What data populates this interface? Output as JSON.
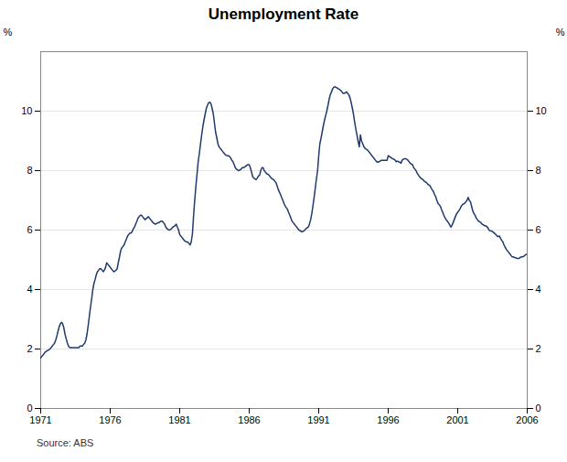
{
  "chart_data": {
    "type": "line",
    "title": "Unemployment Rate",
    "y_label": "%",
    "y2_label": "%",
    "source": "Source: ABS",
    "color": "#1f3a6e",
    "grid": true,
    "xlim": [
      1971,
      2006
    ],
    "ylim": [
      0,
      12
    ],
    "xticks": [
      1971,
      1976,
      1981,
      1986,
      1991,
      1996,
      2001,
      2006
    ],
    "yticks": [
      0,
      2,
      4,
      6,
      8,
      10
    ],
    "y2lim": [
      0,
      12
    ],
    "y2ticks": [
      0,
      2,
      4,
      6,
      8,
      10
    ],
    "x": [
      1971.0,
      1971.08,
      1971.17,
      1971.25,
      1971.33,
      1971.42,
      1971.5,
      1971.58,
      1971.67,
      1971.75,
      1971.83,
      1971.92,
      1972.0,
      1972.08,
      1972.17,
      1972.25,
      1972.33,
      1972.42,
      1972.5,
      1972.58,
      1972.67,
      1972.75,
      1972.83,
      1972.92,
      1973.0,
      1973.08,
      1973.17,
      1973.25,
      1973.33,
      1973.42,
      1973.5,
      1973.58,
      1973.67,
      1973.75,
      1973.83,
      1973.92,
      1974.0,
      1974.08,
      1974.17,
      1974.25,
      1974.33,
      1974.42,
      1974.5,
      1974.58,
      1974.67,
      1974.75,
      1974.83,
      1974.92,
      1975.0,
      1975.08,
      1975.17,
      1975.25,
      1975.33,
      1975.42,
      1975.5,
      1975.58,
      1975.67,
      1975.75,
      1975.83,
      1975.92,
      1976.0,
      1976.08,
      1976.17,
      1976.25,
      1976.33,
      1976.42,
      1976.5,
      1976.58,
      1976.67,
      1976.75,
      1976.83,
      1976.92,
      1977.0,
      1977.08,
      1977.17,
      1977.25,
      1977.33,
      1977.42,
      1977.5,
      1977.58,
      1977.67,
      1977.75,
      1977.83,
      1977.92,
      1978.0,
      1978.08,
      1978.17,
      1978.25,
      1978.33,
      1978.42,
      1978.5,
      1978.58,
      1978.67,
      1978.75,
      1978.83,
      1978.92,
      1979.0,
      1979.08,
      1979.17,
      1979.25,
      1979.33,
      1979.42,
      1979.5,
      1979.58,
      1979.67,
      1979.75,
      1979.83,
      1979.92,
      1980.0,
      1980.08,
      1980.17,
      1980.25,
      1980.33,
      1980.42,
      1980.5,
      1980.58,
      1980.67,
      1980.75,
      1980.83,
      1980.92,
      1981.0,
      1981.08,
      1981.17,
      1981.25,
      1981.33,
      1981.42,
      1981.5,
      1981.58,
      1981.67,
      1981.75,
      1981.83,
      1981.92,
      1982.0,
      1982.08,
      1982.17,
      1982.25,
      1982.33,
      1982.42,
      1982.5,
      1982.58,
      1982.67,
      1982.75,
      1982.83,
      1982.92,
      1983.0,
      1983.08,
      1983.17,
      1983.25,
      1983.33,
      1983.42,
      1983.5,
      1983.58,
      1983.67,
      1983.75,
      1983.83,
      1983.92,
      1984.0,
      1984.08,
      1984.17,
      1984.25,
      1984.33,
      1984.42,
      1984.5,
      1984.58,
      1984.67,
      1984.75,
      1984.83,
      1984.92,
      1985.0,
      1985.08,
      1985.17,
      1985.25,
      1985.33,
      1985.42,
      1985.5,
      1985.58,
      1985.67,
      1985.75,
      1985.83,
      1985.92,
      1986.0,
      1986.08,
      1986.17,
      1986.25,
      1986.33,
      1986.42,
      1986.5,
      1986.58,
      1986.67,
      1986.75,
      1986.83,
      1986.92,
      1987.0,
      1987.08,
      1987.17,
      1987.25,
      1987.33,
      1987.42,
      1987.5,
      1987.58,
      1987.67,
      1987.75,
      1987.83,
      1987.92,
      1988.0,
      1988.08,
      1988.17,
      1988.25,
      1988.33,
      1988.42,
      1988.5,
      1988.58,
      1988.67,
      1988.75,
      1988.83,
      1988.92,
      1989.0,
      1989.08,
      1989.17,
      1989.25,
      1989.33,
      1989.42,
      1989.5,
      1989.58,
      1989.67,
      1989.75,
      1989.83,
      1989.92,
      1990.0,
      1990.08,
      1990.17,
      1990.25,
      1990.33,
      1990.42,
      1990.5,
      1990.58,
      1990.67,
      1990.75,
      1990.83,
      1990.92,
      1991.0,
      1991.08,
      1991.17,
      1991.25,
      1991.33,
      1991.42,
      1991.5,
      1991.58,
      1991.67,
      1991.75,
      1991.83,
      1991.92,
      1992.0,
      1992.08,
      1992.17,
      1992.25,
      1992.33,
      1992.42,
      1992.5,
      1992.58,
      1992.67,
      1992.75,
      1992.83,
      1992.92,
      1993.0,
      1993.08,
      1993.17,
      1993.25,
      1993.33,
      1993.42,
      1993.5,
      1993.58,
      1993.67,
      1993.75,
      1993.83,
      1993.92,
      1994.0,
      1994.08,
      1994.17,
      1994.25,
      1994.33,
      1994.42,
      1994.5,
      1994.58,
      1994.67,
      1994.75,
      1994.83,
      1994.92,
      1995.0,
      1995.08,
      1995.17,
      1995.25,
      1995.33,
      1995.42,
      1995.5,
      1995.58,
      1995.67,
      1995.75,
      1995.83,
      1995.92,
      1996.0,
      1996.08,
      1996.17,
      1996.25,
      1996.33,
      1996.42,
      1996.5,
      1996.58,
      1996.67,
      1996.75,
      1996.83,
      1996.92,
      1997.0,
      1997.08,
      1997.17,
      1997.25,
      1997.33,
      1997.42,
      1997.5,
      1997.58,
      1997.67,
      1997.75,
      1997.83,
      1997.92,
      1998.0,
      1998.08,
      1998.17,
      1998.25,
      1998.33,
      1998.42,
      1998.5,
      1998.58,
      1998.67,
      1998.75,
      1998.83,
      1998.92,
      1999.0,
      1999.08,
      1999.17,
      1999.25,
      1999.33,
      1999.42,
      1999.5,
      1999.58,
      1999.67,
      1999.75,
      1999.83,
      1999.92,
      2000.0,
      2000.08,
      2000.17,
      2000.25,
      2000.33,
      2000.42,
      2000.5,
      2000.58,
      2000.67,
      2000.75,
      2000.83,
      2000.92,
      2001.0,
      2001.08,
      2001.17,
      2001.25,
      2001.33,
      2001.42,
      2001.5,
      2001.58,
      2001.67,
      2001.75,
      2001.83,
      2001.92,
      2002.0,
      2002.08,
      2002.17,
      2002.25,
      2002.33,
      2002.42,
      2002.5,
      2002.58,
      2002.67,
      2002.75,
      2002.83,
      2002.92,
      2003.0,
      2003.08,
      2003.17,
      2003.25,
      2003.33,
      2003.42,
      2003.5,
      2003.58,
      2003.67,
      2003.75,
      2003.83,
      2003.92,
      2004.0,
      2004.08,
      2004.17,
      2004.25,
      2004.33,
      2004.42,
      2004.5,
      2004.58,
      2004.67,
      2004.75,
      2004.83,
      2004.92,
      2005.0,
      2005.08,
      2005.17,
      2005.25,
      2005.33,
      2005.42,
      2005.5,
      2005.58,
      2005.67,
      2005.75,
      2005.83,
      2005.92,
      2006.0
    ],
    "values": [
      1.7,
      1.75,
      1.8,
      1.85,
      1.9,
      1.93,
      1.95,
      1.97,
      2.0,
      2.05,
      2.1,
      2.15,
      2.2,
      2.3,
      2.45,
      2.6,
      2.75,
      2.85,
      2.9,
      2.85,
      2.7,
      2.5,
      2.35,
      2.2,
      2.1,
      2.05,
      2.05,
      2.05,
      2.05,
      2.05,
      2.05,
      2.05,
      2.05,
      2.05,
      2.1,
      2.1,
      2.1,
      2.15,
      2.2,
      2.3,
      2.5,
      2.8,
      3.1,
      3.4,
      3.7,
      4.0,
      4.2,
      4.35,
      4.5,
      4.6,
      4.65,
      4.7,
      4.7,
      4.65,
      4.6,
      4.65,
      4.75,
      4.9,
      4.85,
      4.8,
      4.75,
      4.7,
      4.65,
      4.6,
      4.62,
      4.65,
      4.7,
      4.9,
      5.1,
      5.3,
      5.4,
      5.45,
      5.5,
      5.6,
      5.7,
      5.8,
      5.85,
      5.9,
      5.9,
      5.95,
      6.05,
      6.1,
      6.2,
      6.3,
      6.4,
      6.45,
      6.5,
      6.5,
      6.45,
      6.4,
      6.35,
      6.38,
      6.42,
      6.45,
      6.4,
      6.35,
      6.3,
      6.25,
      6.22,
      6.2,
      6.22,
      6.25,
      6.25,
      6.28,
      6.3,
      6.3,
      6.25,
      6.2,
      6.1,
      6.05,
      6.02,
      6.0,
      6.02,
      6.05,
      6.1,
      6.12,
      6.15,
      6.2,
      6.1,
      6.0,
      5.85,
      5.8,
      5.75,
      5.7,
      5.65,
      5.62,
      5.6,
      5.6,
      5.55,
      5.5,
      5.6,
      5.9,
      6.5,
      7.0,
      7.5,
      7.9,
      8.3,
      8.6,
      8.9,
      9.2,
      9.5,
      9.7,
      9.9,
      10.1,
      10.2,
      10.28,
      10.3,
      10.25,
      10.1,
      9.9,
      9.6,
      9.3,
      9.1,
      8.9,
      8.8,
      8.75,
      8.7,
      8.65,
      8.6,
      8.55,
      8.52,
      8.5,
      8.5,
      8.48,
      8.42,
      8.35,
      8.3,
      8.2,
      8.1,
      8.05,
      8.02,
      8.0,
      8.02,
      8.05,
      8.1,
      8.1,
      8.12,
      8.15,
      8.18,
      8.2,
      8.2,
      8.1,
      7.95,
      7.8,
      7.75,
      7.72,
      7.7,
      7.75,
      7.82,
      7.85,
      8.0,
      8.1,
      8.1,
      8.0,
      7.95,
      7.9,
      7.88,
      7.85,
      7.8,
      7.75,
      7.72,
      7.7,
      7.65,
      7.6,
      7.5,
      7.38,
      7.28,
      7.2,
      7.1,
      7.0,
      6.9,
      6.82,
      6.75,
      6.7,
      6.6,
      6.5,
      6.4,
      6.3,
      6.25,
      6.2,
      6.15,
      6.1,
      6.05,
      6.0,
      5.98,
      5.95,
      5.95,
      5.97,
      6.0,
      6.05,
      6.08,
      6.1,
      6.2,
      6.35,
      6.55,
      6.8,
      7.1,
      7.4,
      7.7,
      8.0,
      8.5,
      8.9,
      9.1,
      9.3,
      9.5,
      9.7,
      9.85,
      10.0,
      10.2,
      10.4,
      10.55,
      10.65,
      10.75,
      10.8,
      10.82,
      10.8,
      10.78,
      10.75,
      10.73,
      10.7,
      10.65,
      10.6,
      10.6,
      10.62,
      10.65,
      10.6,
      10.55,
      10.45,
      10.3,
      10.1,
      9.9,
      9.65,
      9.4,
      9.2,
      9.0,
      8.8,
      9.2,
      9.0,
      8.9,
      8.8,
      8.75,
      8.72,
      8.7,
      8.65,
      8.6,
      8.55,
      8.5,
      8.45,
      8.4,
      8.35,
      8.3,
      8.28,
      8.3,
      8.32,
      8.35,
      8.35,
      8.35,
      8.35,
      8.35,
      8.35,
      8.5,
      8.48,
      8.45,
      8.42,
      8.4,
      8.38,
      8.35,
      8.3,
      8.32,
      8.3,
      8.28,
      8.25,
      8.35,
      8.38,
      8.4,
      8.4,
      8.38,
      8.35,
      8.3,
      8.25,
      8.22,
      8.2,
      8.1,
      8.05,
      8.0,
      7.92,
      7.85,
      7.8,
      7.75,
      7.72,
      7.7,
      7.65,
      7.62,
      7.6,
      7.55,
      7.52,
      7.5,
      7.42,
      7.35,
      7.3,
      7.2,
      7.12,
      7.0,
      6.9,
      6.85,
      6.8,
      6.7,
      6.6,
      6.5,
      6.42,
      6.35,
      6.3,
      6.25,
      6.18,
      6.1,
      6.15,
      6.25,
      6.35,
      6.45,
      6.55,
      6.6,
      6.65,
      6.72,
      6.8,
      6.85,
      6.88,
      6.9,
      6.95,
      7.0,
      7.1,
      7.0,
      6.95,
      6.8,
      6.65,
      6.55,
      6.5,
      6.4,
      6.35,
      6.3,
      6.28,
      6.25,
      6.2,
      6.18,
      6.15,
      6.15,
      6.12,
      6.08,
      6.0,
      5.98,
      5.97,
      5.95,
      5.92,
      5.88,
      5.85,
      5.8,
      5.78,
      5.8,
      5.72,
      5.65,
      5.6,
      5.5,
      5.42,
      5.35,
      5.3,
      5.25,
      5.2,
      5.15,
      5.1,
      5.1,
      5.08,
      5.07,
      5.05,
      5.05,
      5.05,
      5.08,
      5.1,
      5.1,
      5.12,
      5.15,
      5.18,
      5.2
    ]
  }
}
